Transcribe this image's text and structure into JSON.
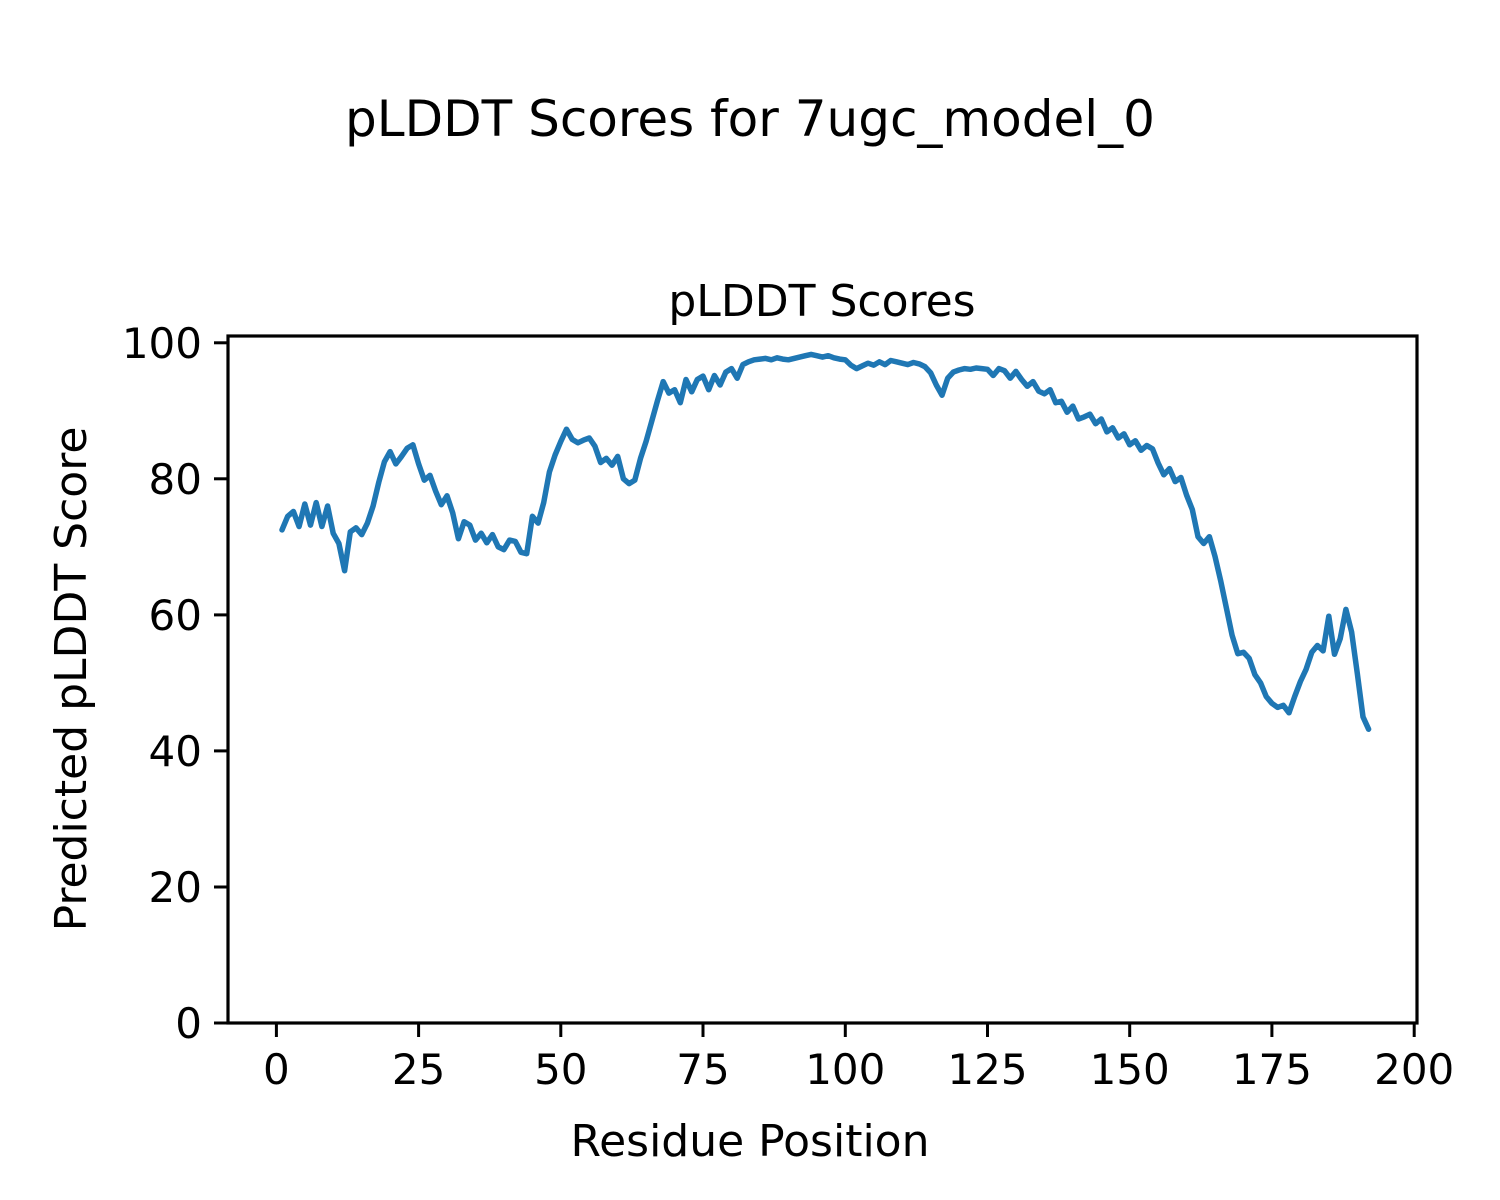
{
  "figure_title": "pLDDT Scores for 7ugc_model_0",
  "chart_data": {
    "type": "line",
    "title": "pLDDT Scores",
    "xlabel": "Residue Position",
    "ylabel": "Predicted pLDDT Score",
    "x_ticks": [
      0,
      25,
      50,
      75,
      100,
      125,
      150,
      175,
      200
    ],
    "y_ticks": [
      0,
      20,
      40,
      60,
      80,
      100
    ],
    "xlim": [
      -8.5,
      200.5
    ],
    "ylim": [
      0,
      101
    ],
    "grid": false,
    "line_color": "#1f77b4",
    "line_width": 5.5,
    "series": [
      {
        "name": "pLDDT",
        "x_start": 1,
        "x_step": 1,
        "values": [
          72.5,
          74.5,
          75.2,
          73.0,
          76.3,
          73.2,
          76.5,
          73.0,
          76.0,
          72.0,
          70.5,
          66.5,
          72.2,
          72.8,
          71.8,
          73.5,
          76.0,
          79.5,
          82.5,
          84.0,
          82.2,
          83.3,
          84.5,
          85.0,
          82.2,
          79.8,
          80.5,
          78.2,
          76.2,
          77.5,
          75.0,
          71.2,
          73.7,
          73.2,
          71.0,
          72.0,
          70.6,
          71.8,
          70.0,
          69.6,
          71.0,
          70.8,
          69.2,
          69.0,
          74.5,
          73.5,
          76.5,
          81.0,
          83.5,
          85.5,
          87.3,
          85.8,
          85.3,
          85.7,
          86.0,
          84.8,
          82.4,
          83.0,
          82.0,
          83.3,
          80.0,
          79.3,
          79.8,
          83.0,
          85.5,
          88.5,
          91.5,
          94.3,
          92.6,
          93.1,
          91.2,
          94.6,
          92.8,
          94.6,
          95.1,
          93.1,
          95.2,
          93.8,
          95.7,
          96.2,
          94.8,
          96.8,
          97.2,
          97.5,
          97.6,
          97.7,
          97.5,
          97.8,
          97.6,
          97.5,
          97.7,
          97.9,
          98.1,
          98.3,
          98.1,
          97.9,
          98.1,
          97.8,
          97.6,
          97.5,
          96.7,
          96.2,
          96.6,
          97.0,
          96.7,
          97.2,
          96.8,
          97.4,
          97.2,
          97.0,
          96.8,
          97.1,
          96.9,
          96.5,
          95.6,
          93.8,
          92.3,
          94.8,
          95.7,
          96.0,
          96.2,
          96.1,
          96.3,
          96.2,
          96.1,
          95.2,
          96.2,
          95.9,
          94.8,
          95.8,
          94.6,
          93.6,
          94.3,
          92.9,
          92.5,
          93.1,
          91.2,
          91.4,
          89.8,
          90.7,
          88.8,
          89.1,
          89.5,
          88.1,
          88.8,
          86.9,
          87.5,
          86.0,
          86.6,
          85.0,
          85.6,
          84.2,
          84.9,
          84.4,
          82.3,
          80.6,
          81.5,
          79.6,
          80.2,
          77.6,
          75.5,
          71.5,
          70.5,
          71.5,
          68.6,
          65.0,
          61.0,
          57.0,
          54.3,
          54.5,
          53.6,
          51.2,
          50.0,
          48.0,
          47.0,
          46.4,
          46.7,
          45.6,
          48.0,
          50.2,
          52.0,
          54.5,
          55.5,
          54.7,
          59.8,
          54.2,
          56.5,
          60.8,
          57.5,
          51.4,
          45.0,
          43.2
        ]
      }
    ]
  }
}
